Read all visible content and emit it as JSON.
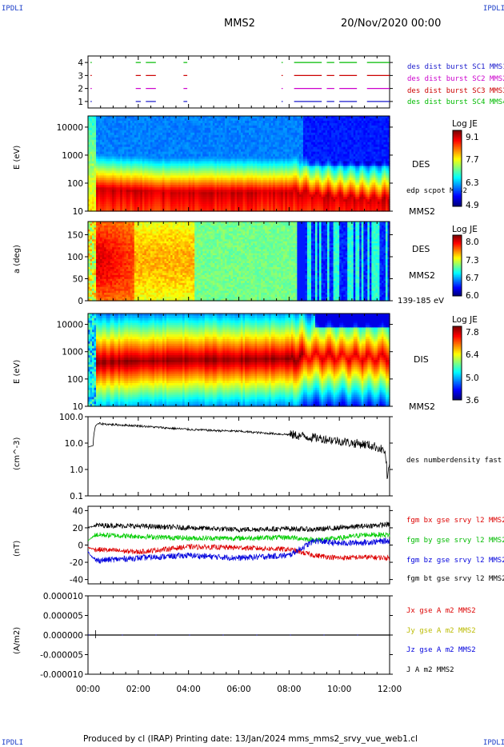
{
  "header": {
    "corner_tl": "IPDLI",
    "corner_tr": "IPDLI",
    "corner_bl": "IPDLI",
    "corner_br": "IPDLI",
    "spacecraft": "MMS2",
    "date": "20/Nov/2020 00:00"
  },
  "footer": {
    "text": "Produced by cl (IRAP)   Printing date: 13/Jan/2024   mms_mms2_srvy_vue_web1.cl"
  },
  "panels": {
    "burst": {
      "ticks": [
        "4",
        "3",
        "2",
        "1"
      ],
      "legend": [
        {
          "text": "des dist burst SC1 MMS1",
          "color": "#1a1acc"
        },
        {
          "text": "des dist burst SC2 MMS2",
          "color": "#cc00cc"
        },
        {
          "text": "des dist burst SC3 MMS3",
          "color": "#cc0000"
        },
        {
          "text": "des dist burst SC4 MMS4",
          "color": "#00bb00"
        }
      ]
    },
    "des_energy": {
      "ylabel": "E (eV)",
      "yticks": [
        "10000",
        "1000",
        "100",
        "10"
      ],
      "right_labels": [
        "DES",
        "edp scpot MMS2",
        "MMS2"
      ],
      "cbar_title": "Log JE",
      "cbar_ticks": [
        "9.1",
        "7.7",
        "6.3",
        "4.9"
      ]
    },
    "des_pitch": {
      "ylabel": "a (deg)",
      "yticks": [
        "150",
        "100",
        "50",
        "0"
      ],
      "right_labels": [
        "DES",
        "MMS2",
        "139-185 eV"
      ],
      "cbar_title": "Log JE",
      "cbar_ticks": [
        "8.0",
        "7.3",
        "6.7",
        "6.0"
      ]
    },
    "dis_energy": {
      "ylabel": "E (eV)",
      "yticks": [
        "10000",
        "1000",
        "100",
        "10"
      ],
      "right_labels": [
        "DIS",
        "MMS2"
      ],
      "cbar_title": "Log JE",
      "cbar_ticks": [
        "7.8",
        "6.4",
        "5.0",
        "3.6"
      ]
    },
    "density": {
      "ylabel": "(cm^-3)",
      "yticks": [
        "100.0",
        "10.0",
        "1.0",
        "0.1"
      ],
      "legend": [
        {
          "text": "des numberdensity fast M",
          "color": "#000000"
        }
      ]
    },
    "bfield": {
      "ylabel": "(nT)",
      "yticks": [
        "40",
        "20",
        "0",
        "-20",
        "-40"
      ],
      "legend": [
        {
          "text": "fgm bx gse srvy l2 MMS2",
          "color": "#dd0000"
        },
        {
          "text": "fgm by gse srvy l2 MMS2",
          "color": "#00bb00"
        },
        {
          "text": "fgm bz gse srvy l2 MMS2",
          "color": "#0000dd"
        },
        {
          "text": "fgm bt gse srvy l2 MMS2",
          "color": "#000000"
        }
      ]
    },
    "current": {
      "ylabel": "(A/m2)",
      "yticks": [
        "0.000010",
        "0.000005",
        "0.000000",
        "-0.000005",
        "-0.000010"
      ],
      "legend": [
        {
          "text": "Jx gse A m2 MMS2",
          "color": "#dd0000"
        },
        {
          "text": "Jy gse A m2 MMS2",
          "color": "#bbbb00"
        },
        {
          "text": "Jz gse A m2 MMS2",
          "color": "#0000dd"
        },
        {
          "text": "J A m2 MMS2",
          "color": "#000000"
        }
      ]
    }
  },
  "xaxis": {
    "ticks": [
      "00:00",
      "02:00",
      "04:00",
      "06:00",
      "08:00",
      "10:00",
      "12:00"
    ]
  },
  "chart_data": [
    {
      "type": "line",
      "title": "des dist burst",
      "x_unit": "hours",
      "ylim": [
        0.5,
        4.5
      ],
      "series": [
        {
          "name": "des dist burst SC1 MMS1",
          "y": 1,
          "color": "#1a1acc",
          "intervals": [
            [
              0.1,
              0.15
            ],
            [
              1.9,
              2.1
            ],
            [
              2.3,
              2.7
            ],
            [
              3.8,
              3.95
            ],
            [
              7.7,
              7.75
            ],
            [
              8.2,
              9.3
            ],
            [
              9.5,
              9.8
            ],
            [
              10.0,
              10.7
            ],
            [
              11.1,
              12.0
            ]
          ]
        },
        {
          "name": "des dist burst SC2 MMS2",
          "y": 2,
          "color": "#cc00cc",
          "intervals": [
            [
              0.1,
              0.15
            ],
            [
              1.9,
              2.1
            ],
            [
              2.3,
              2.7
            ],
            [
              3.8,
              3.95
            ],
            [
              7.7,
              7.75
            ],
            [
              8.2,
              9.3
            ],
            [
              9.5,
              9.8
            ],
            [
              10.0,
              10.7
            ],
            [
              11.1,
              12.0
            ]
          ]
        },
        {
          "name": "des dist burst SC3 MMS3",
          "y": 3,
          "color": "#cc0000",
          "intervals": [
            [
              0.1,
              0.15
            ],
            [
              1.9,
              2.1
            ],
            [
              2.3,
              2.7
            ],
            [
              3.8,
              3.95
            ],
            [
              7.7,
              7.75
            ],
            [
              8.2,
              9.3
            ],
            [
              9.5,
              9.8
            ],
            [
              10.0,
              10.7
            ],
            [
              11.1,
              12.0
            ]
          ]
        },
        {
          "name": "des dist burst SC4 MMS4",
          "y": 4,
          "color": "#00bb00",
          "intervals": [
            [
              0.1,
              0.15
            ],
            [
              1.9,
              2.1
            ],
            [
              2.3,
              2.7
            ],
            [
              3.8,
              3.95
            ],
            [
              7.7,
              7.75
            ],
            [
              8.2,
              9.3
            ],
            [
              9.5,
              9.8
            ],
            [
              10.0,
              10.7
            ],
            [
              11.1,
              12.0
            ]
          ]
        }
      ]
    },
    {
      "type": "heatmap",
      "title": "DES energy spectrogram",
      "ylabel": "E (eV)",
      "yscale": "log",
      "ylim": [
        10,
        25000
      ],
      "zlim": [
        4.9,
        9.1
      ],
      "x_hours": [
        0.3,
        1,
        2,
        3,
        4,
        5,
        6,
        7,
        8,
        8.5,
        9,
        10,
        11,
        12
      ],
      "peak_energy_eV": [
        60,
        55,
        50,
        45,
        45,
        45,
        45,
        45,
        45,
        45,
        35,
        30,
        25,
        25
      ]
    },
    {
      "type": "heatmap",
      "title": "DES pitch angle",
      "ylabel": "a (deg)",
      "ylim": [
        0,
        180
      ],
      "zlim": [
        6.0,
        8.0
      ]
    },
    {
      "type": "heatmap",
      "title": "DIS energy spectrogram",
      "ylabel": "E (eV)",
      "yscale": "log",
      "ylim": [
        10,
        25000
      ],
      "zlim": [
        3.6,
        7.8
      ],
      "x_hours": [
        0.3,
        2,
        4,
        6,
        8,
        9,
        10,
        11,
        12
      ],
      "peak_energy_eV": [
        400,
        450,
        500,
        500,
        550,
        700,
        650,
        600,
        600
      ]
    },
    {
      "type": "line",
      "ylabel": "(cm^-3)",
      "yscale": "log",
      "ylim": [
        0.1,
        100
      ],
      "series": [
        {
          "name": "des numberdensity fast M",
          "x": [
            0.0,
            0.2,
            0.3,
            0.4,
            1,
            2,
            3,
            4,
            5,
            6,
            7,
            8,
            9,
            10,
            10.5,
            11,
            11.5,
            11.8,
            11.9,
            12.0
          ],
          "y": [
            7,
            8,
            45,
            55,
            50,
            45,
            38,
            33,
            30,
            28,
            24,
            21,
            16,
            12,
            10,
            9,
            7,
            5,
            0.4,
            1.2
          ]
        }
      ]
    },
    {
      "type": "line",
      "ylabel": "(nT)",
      "ylim": [
        -45,
        45
      ],
      "series": [
        {
          "name": "fgm bt gse srvy l2 MMS2",
          "x": [
            0,
            0.3,
            2,
            4,
            6,
            8,
            9,
            10,
            11,
            12
          ],
          "y": [
            20,
            23,
            22,
            20,
            18,
            19,
            18,
            20,
            22,
            24
          ]
        },
        {
          "name": "fgm by gse srvy l2 MMS2",
          "x": [
            0,
            0.3,
            2,
            4,
            6,
            8,
            9,
            10,
            11,
            12
          ],
          "y": [
            5,
            12,
            10,
            8,
            8,
            9,
            6,
            8,
            12,
            12
          ]
        },
        {
          "name": "fgm bx gse srvy l2 MMS2",
          "x": [
            0,
            0.3,
            2,
            4,
            6,
            8,
            9,
            10,
            11,
            12
          ],
          "y": [
            -3,
            -5,
            -8,
            -2,
            -3,
            -5,
            -12,
            -15,
            -14,
            -15
          ]
        },
        {
          "name": "fgm bz gse srvy l2 MMS2",
          "x": [
            0,
            0.3,
            2,
            4,
            6,
            8,
            9,
            10,
            11,
            12
          ],
          "y": [
            -8,
            -18,
            -15,
            -12,
            -15,
            -12,
            5,
            2,
            3,
            5
          ]
        }
      ]
    },
    {
      "type": "line",
      "ylabel": "(A/m2)",
      "ylim": [
        -1e-05,
        1e-05
      ],
      "series": [
        {
          "name": "J A m2 MMS2",
          "x": [
            0,
            12
          ],
          "y": [
            0,
            0
          ]
        }
      ]
    }
  ]
}
